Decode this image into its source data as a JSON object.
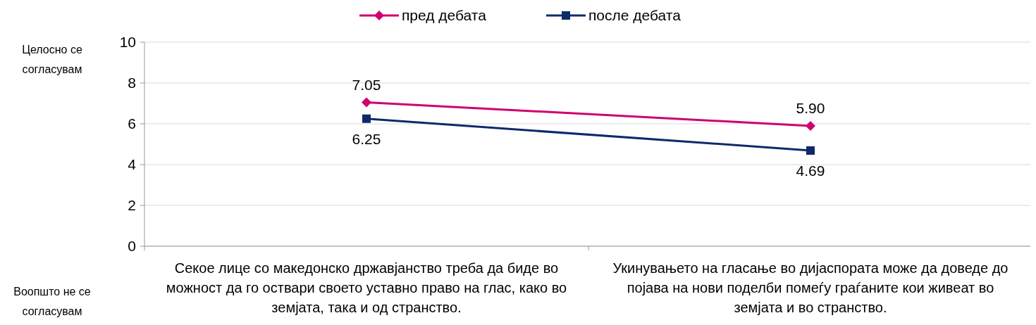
{
  "chart_data": {
    "type": "line",
    "categories": [
      "Секое лице со македонско државјанство треба да биде во можност да го оствари своето уставно право на глас, како во земјата, така и од странство.",
      "Укинувањето на гласање во дијаспората може да доведе до појава на нови поделби помеѓу граѓаните кои живеат во земјата и во странство."
    ],
    "series": [
      {
        "name": "пред дебата",
        "color": "#d0006f",
        "marker": "diamond",
        "values": [
          7.05,
          5.9
        ],
        "value_labels": [
          "7.05",
          "5.90"
        ]
      },
      {
        "name": "после дебата",
        "color": "#0e2a6b",
        "marker": "square",
        "values": [
          6.25,
          4.69
        ],
        "value_labels": [
          "6.25",
          "4.69"
        ]
      }
    ],
    "ylim": [
      0,
      10
    ],
    "yticks": [
      0,
      2,
      4,
      6,
      8,
      10
    ],
    "grid": "y",
    "legend": "top",
    "annotations": [
      "Целосно се согласувам",
      "Воопшто не се согласувам"
    ]
  }
}
